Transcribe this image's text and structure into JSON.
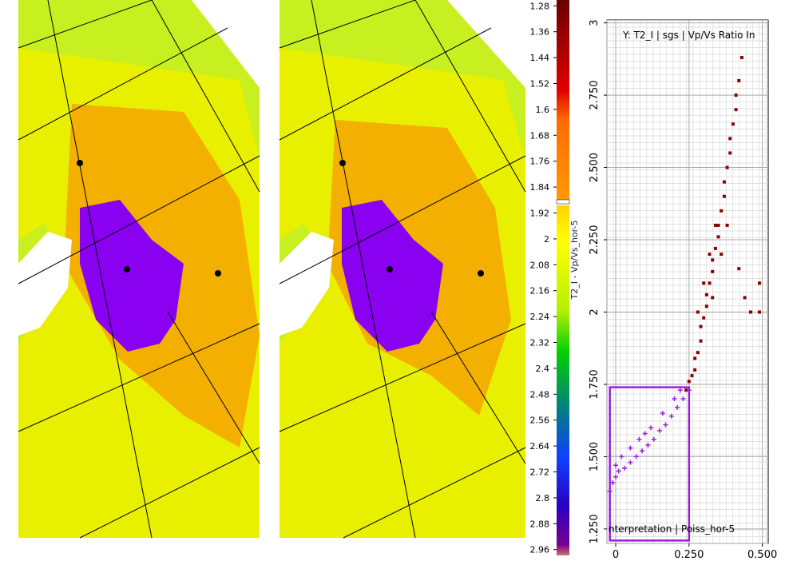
{
  "colorbar": {
    "label": "T2_I - Vp/Vs_hor-5",
    "lim": [
      1.262,
      2.978
    ],
    "ticks": [
      1.28,
      1.36,
      1.44,
      1.52,
      1.6,
      1.68,
      1.76,
      1.84,
      1.92,
      2,
      2.08,
      2.16,
      2.24,
      2.32,
      2.4,
      2.48,
      2.56,
      2.64,
      2.72,
      2.8,
      2.88,
      2.96
    ]
  },
  "chart_data": {
    "type": "scatter",
    "title": "Y: T2_I | sgs | Vp/Vs Ratio In",
    "annotation": "nterpretation  | Poiss_hor-5",
    "xlim": [
      -0.03,
      0.52
    ],
    "ylim": [
      1.2,
      3.01
    ],
    "xticks": [
      0,
      {
        "value": 0.25,
        "label": "0.250"
      },
      {
        "value": 0.5,
        "label": "0.500"
      }
    ],
    "yticks": [
      {
        "value": 1.25,
        "label": "1.250"
      },
      {
        "value": 1.5,
        "label": "1.500"
      },
      {
        "value": 1.75,
        "label": "1.750"
      },
      2,
      {
        "value": 2.25,
        "label": "2.250"
      },
      {
        "value": 2.5,
        "label": "2.500"
      },
      {
        "value": 2.75,
        "label": "2.750"
      },
      3
    ],
    "grid": true,
    "selection": {
      "x": [
        -0.02,
        0.25
      ],
      "y": [
        1.21,
        1.74
      ],
      "color": "#9b1fe0"
    },
    "series": [
      {
        "color": "#8b0000",
        "marker": "square",
        "x": [
          0.24,
          0.25,
          0.26,
          0.27,
          0.27,
          0.28,
          0.29,
          0.29,
          0.3,
          0.31,
          0.31,
          0.32,
          0.33,
          0.33,
          0.34,
          0.35,
          0.35,
          0.36,
          0.37,
          0.37,
          0.38,
          0.39,
          0.39,
          0.4,
          0.41,
          0.41,
          0.42,
          0.43,
          0.3,
          0.32,
          0.28,
          0.34,
          0.42,
          0.44,
          0.46,
          0.49,
          0.49,
          0.36,
          0.33,
          0.38
        ],
        "values": [
          1.73,
          1.76,
          1.78,
          1.8,
          1.84,
          1.86,
          1.9,
          1.95,
          1.98,
          2.02,
          2.06,
          2.1,
          2.14,
          2.18,
          2.22,
          2.26,
          2.3,
          2.35,
          2.4,
          2.45,
          2.5,
          2.55,
          2.6,
          2.65,
          2.7,
          2.75,
          2.8,
          2.88,
          2.1,
          2.2,
          2.0,
          2.3,
          2.15,
          2.05,
          2.0,
          2.1,
          2.0,
          2.2,
          2.05,
          2.3
        ]
      },
      {
        "color": "#9b1fe0",
        "marker": "plus",
        "x": [
          -0.02,
          -0.01,
          0,
          0.01,
          0.03,
          0.05,
          0.07,
          0.09,
          0.11,
          0.13,
          0.15,
          0.17,
          0.19,
          0.21,
          0.23,
          0.25,
          0.02,
          0.05,
          0.08,
          0.12,
          0.16,
          0.2,
          0.22,
          0,
          0.1
        ],
        "values": [
          1.38,
          1.41,
          1.43,
          1.45,
          1.46,
          1.48,
          1.5,
          1.52,
          1.54,
          1.56,
          1.59,
          1.61,
          1.64,
          1.67,
          1.7,
          1.73,
          1.5,
          1.53,
          1.56,
          1.6,
          1.65,
          1.7,
          1.73,
          1.47,
          1.58
        ]
      }
    ]
  }
}
